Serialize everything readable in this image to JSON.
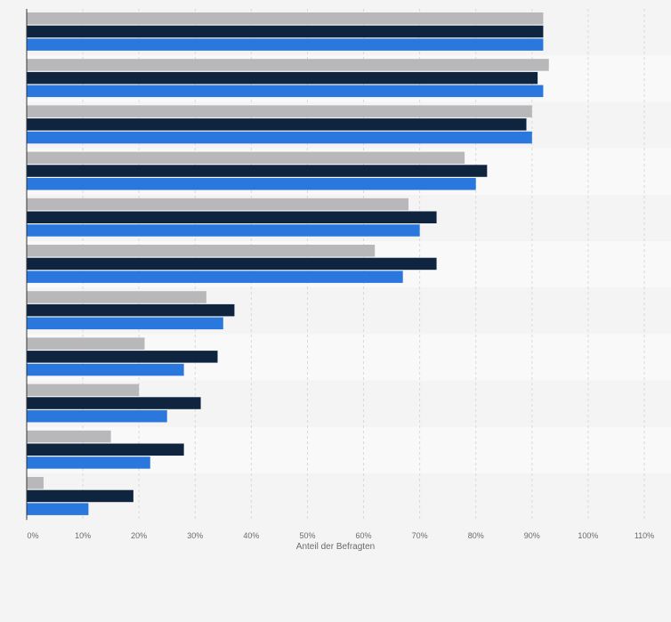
{
  "chart_data": {
    "type": "bar",
    "orientation": "horizontal",
    "title": "",
    "xlabel": "Anteil der Befragten",
    "ylabel": "",
    "xlim": [
      0,
      110
    ],
    "x_ticks": [
      0,
      10,
      20,
      30,
      40,
      50,
      60,
      70,
      80,
      90,
      100,
      110
    ],
    "tick_suffix": "%",
    "grid": true,
    "categories": [
      "",
      "",
      "",
      "",
      "",
      "",
      "",
      "",
      "",
      "",
      ""
    ],
    "series": [
      {
        "color": "#b8b8ba",
        "values": [
          92,
          93,
          90,
          78,
          68,
          62,
          32,
          21,
          20,
          15,
          3
        ]
      },
      {
        "color": "#0f253f",
        "values": [
          92,
          91,
          89,
          82,
          73,
          73,
          37,
          34,
          31,
          28,
          19
        ]
      },
      {
        "color": "#2a78dd",
        "values": [
          92,
          92,
          90,
          80,
          70,
          67,
          35,
          28,
          25,
          22,
          11
        ]
      }
    ]
  }
}
